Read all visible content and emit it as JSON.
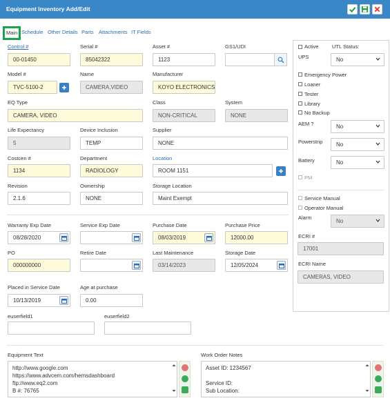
{
  "window": {
    "title": "Equipment Inventory Add/Edit",
    "buttons": {
      "save_check": "check-icon",
      "save_disk": "disk-icon",
      "close": "close-icon"
    }
  },
  "tabs": [
    "Main",
    "Schedule",
    "Other Details",
    "Parts",
    "Attachments",
    "IT Fields"
  ],
  "form": {
    "control": {
      "label": "Control #",
      "value": "00-01450"
    },
    "serial": {
      "label": "Serial #",
      "value": "85042322"
    },
    "asset": {
      "label": "Asset #",
      "value": "1123"
    },
    "gsudi": {
      "label": "GS1/UDI",
      "value": ""
    },
    "model": {
      "label": "Model #",
      "value": "TVC-5100-2"
    },
    "name": {
      "label": "Name",
      "value": "CAMERA,VIDEO"
    },
    "manufacturer": {
      "label": "Manufacturer",
      "value": "KOYO ELECTRONICS"
    },
    "eqtype": {
      "label": "EQ Type",
      "value": "CAMERA, VIDEO"
    },
    "class": {
      "label": "Class",
      "value": "NON-CRITICAL"
    },
    "system": {
      "label": "System",
      "value": "NONE"
    },
    "life": {
      "label": "Life Expectancy",
      "value": "5"
    },
    "device_inclusion": {
      "label": "Device Inclusion",
      "value": "TEMP"
    },
    "supplier": {
      "label": "Supplier",
      "value": "NONE"
    },
    "costcen": {
      "label": "Costcen #",
      "value": "1134"
    },
    "department": {
      "label": "Department",
      "value": "RADIOLOGY"
    },
    "location": {
      "label": "Location",
      "value": "ROOM 1151"
    },
    "revision": {
      "label": "Revision",
      "value": "2.1.6"
    },
    "ownership": {
      "label": "Ownership",
      "value": "NONE"
    },
    "storage_location": {
      "label": "Storage Location",
      "value": "Maint Exempt"
    },
    "warranty_exp": {
      "label": "Warranty Exp Date",
      "value": "08/28/2020"
    },
    "service_exp": {
      "label": "Service Exp Date",
      "value": ""
    },
    "purchase_date": {
      "label": "Purchase Date",
      "value": "08/03/2019"
    },
    "purchase_price": {
      "label": "Purchase Price",
      "value": "12000.00"
    },
    "po": {
      "label": "PO",
      "value": "000000000"
    },
    "retire_date": {
      "label": "Retire Date",
      "value": ""
    },
    "last_maintenance": {
      "label": "Last Maintenance",
      "value": "03/14/2023"
    },
    "storage_date": {
      "label": "Storage Date",
      "value": "12/05/2024"
    },
    "placed_in_service": {
      "label": "Placed in Service Date",
      "value": "10/13/2019"
    },
    "age_at_purchase": {
      "label": "Age at purchase",
      "value": "0.00"
    },
    "euserfield1": {
      "label": "euserfield1",
      "value": ""
    },
    "euserfield2": {
      "label": "euserfield2",
      "value": ""
    },
    "equipment_text": {
      "label": "Equipment Text",
      "lines": [
        "http://www.google.com",
        "https://www.advcem.com/hemsdashboard",
        "ftp://www.eq2.com",
        "B #: 76765"
      ]
    },
    "work_order_notes": {
      "label": "Work Order Notes",
      "lines": [
        "Asset ID: 1234567",
        "",
        "Service ID:",
        "Sub Location:"
      ]
    }
  },
  "right_panel": {
    "active": "Active",
    "utl_status": {
      "label": "UTL Status:",
      "value": "No"
    },
    "ups": {
      "label": "UPS"
    },
    "emergency_power": "Emergency Power",
    "loaner": "Loaner",
    "tester": "Tester",
    "library": "Library",
    "no_backup": "No Backup",
    "aem": {
      "label": "AEM ?",
      "value": "No"
    },
    "powerstrip": {
      "label": "Powerstrip",
      "value": "No"
    },
    "battery": {
      "label": "Battery",
      "value": "No"
    },
    "pm": "PM",
    "service_manual": "Service Manual",
    "operator_manual": "Operator Manual",
    "alarm": {
      "label": "Alarm",
      "value": "No"
    },
    "ecri_no": {
      "label": "ECRI #",
      "value": "17001"
    },
    "ecri_name": {
      "label": "ECRI Name",
      "value": "CAMERAS, VIDEO"
    }
  },
  "colors": {
    "header": "#3a87c8",
    "required": "#fdfbd9",
    "readonly": "#e8e8e8",
    "active_tab_border": "#1aa34a"
  }
}
